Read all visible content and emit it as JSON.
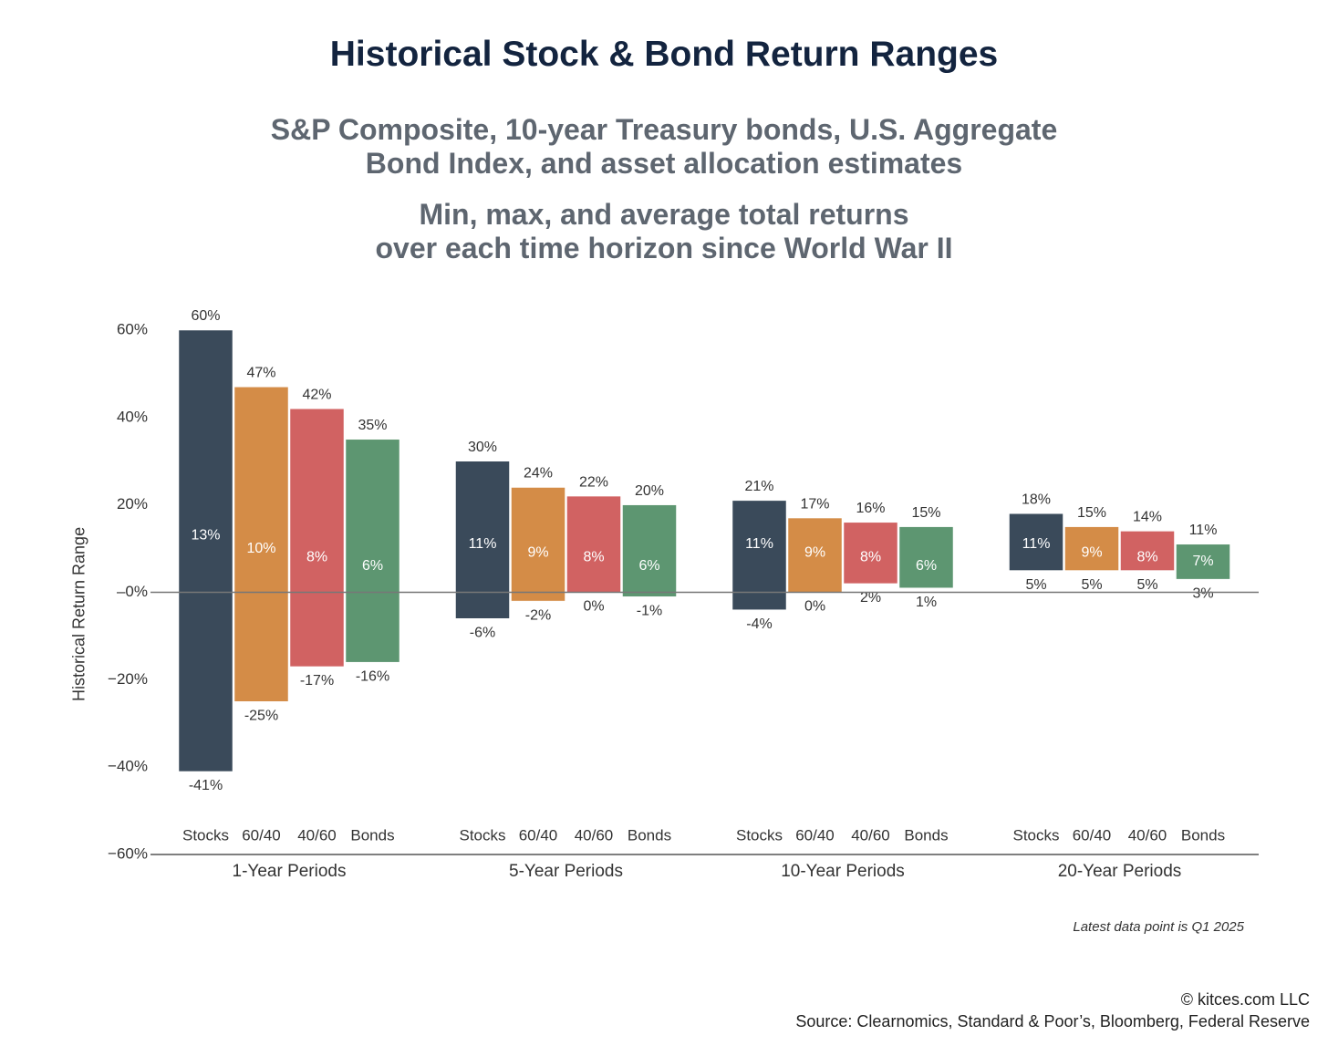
{
  "header": {
    "title": "Historical Stock & Bond Return Ranges",
    "subtitle_line1": "S&P Composite, 10-year Treasury bonds, U.S. Aggregate",
    "subtitle_line2": "Bond Index, and asset allocation estimates",
    "subtitle2_line1": "Min, max, and average total returns",
    "subtitle2_line2": "over each time horizon since World War II"
  },
  "footer": {
    "note": "Latest data point is Q1 2025",
    "credit": "© kitces.com LLC",
    "source": "Source: Clearnomics, Standard & Poor’s, Bloomberg, Federal Reserve"
  },
  "colors": {
    "Stocks": "#3a4a5a",
    "60/40": "#d48c47",
    "40/60": "#d16262",
    "Bonds": "#5d9671"
  },
  "chart_data": {
    "type": "bar",
    "subtype": "floating-range",
    "ylabel": "Historical Return Range",
    "ylim": [
      -60,
      60
    ],
    "yticks": [
      60,
      40,
      20,
      0,
      -20,
      -40,
      -60
    ],
    "ytick_labels": [
      "60%",
      "40%",
      "20%",
      "–0%",
      "−20%",
      "−40%",
      "−60%"
    ],
    "categories": [
      "1-Year Periods",
      "5-Year Periods",
      "10-Year Periods",
      "20-Year Periods"
    ],
    "series_names": [
      "Stocks",
      "60/40",
      "40/60",
      "Bonds"
    ],
    "groups": [
      {
        "label": "1-Year Periods",
        "bars": [
          {
            "name": "Stocks",
            "min": -41,
            "max": 60,
            "avg": 13
          },
          {
            "name": "60/40",
            "min": -25,
            "max": 47,
            "avg": 10
          },
          {
            "name": "40/60",
            "min": -17,
            "max": 42,
            "avg": 8
          },
          {
            "name": "Bonds",
            "min": -16,
            "max": 35,
            "avg": 6
          }
        ]
      },
      {
        "label": "5-Year Periods",
        "bars": [
          {
            "name": "Stocks",
            "min": -6,
            "max": 30,
            "avg": 11
          },
          {
            "name": "60/40",
            "min": -2,
            "max": 24,
            "avg": 9
          },
          {
            "name": "40/60",
            "min": 0,
            "max": 22,
            "avg": 8
          },
          {
            "name": "Bonds",
            "min": -1,
            "max": 20,
            "avg": 6
          }
        ]
      },
      {
        "label": "10-Year Periods",
        "bars": [
          {
            "name": "Stocks",
            "min": -4,
            "max": 21,
            "avg": 11
          },
          {
            "name": "60/40",
            "min": 0,
            "max": 17,
            "avg": 9
          },
          {
            "name": "40/60",
            "min": 2,
            "max": 16,
            "avg": 8
          },
          {
            "name": "Bonds",
            "min": 1,
            "max": 15,
            "avg": 6
          }
        ]
      },
      {
        "label": "20-Year Periods",
        "bars": [
          {
            "name": "Stocks",
            "min": 5,
            "max": 18,
            "avg": 11
          },
          {
            "name": "60/40",
            "min": 5,
            "max": 15,
            "avg": 9
          },
          {
            "name": "40/60",
            "min": 5,
            "max": 14,
            "avg": 8
          },
          {
            "name": "Bonds",
            "min": 3,
            "max": 11,
            "avg": 7
          }
        ]
      }
    ]
  }
}
